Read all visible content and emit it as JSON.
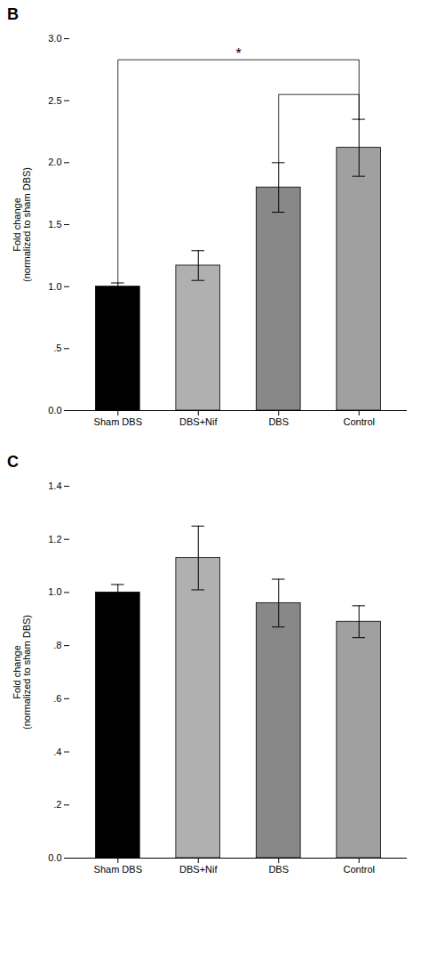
{
  "chart_data": [
    {
      "type": "bar",
      "title": "B",
      "categories": [
        "Sham DBS",
        "DBS+Nif",
        "DBS",
        "Control"
      ],
      "values": [
        1.0,
        1.17,
        1.8,
        2.12
      ],
      "errors": [
        0.03,
        0.12,
        0.2,
        0.23
      ],
      "colors": [
        "black",
        "#b0b0b0",
        "#888888",
        "#a0a0a0"
      ],
      "ylabel": "Fold change\n(normalized to sham DBS)",
      "ylim": [
        0.0,
        3.0
      ],
      "yticks": [
        {
          "value": 0.0,
          "label": "0.0"
        },
        {
          "value": 0.5,
          "label": ".5"
        },
        {
          "value": 1.0,
          "label": "1.0"
        },
        1.5,
        {
          "value": 2.0,
          "label": "2.0"
        },
        2.5,
        {
          "value": 3.0,
          "label": "3.0"
        }
      ],
      "brackets": [
        {
          "from": "Sham DBS",
          "to": "Control",
          "y": 2.83,
          "label": "*"
        },
        {
          "from": "DBS",
          "to": "Control",
          "y": 2.55
        }
      ]
    },
    {
      "type": "bar",
      "title": "C",
      "categories": [
        "Sham DBS",
        "DBS+Nif",
        "DBS",
        "Control"
      ],
      "values": [
        1.0,
        1.13,
        0.96,
        0.89
      ],
      "errors": [
        0.03,
        0.12,
        0.09,
        0.06
      ],
      "colors": [
        "black",
        "#b0b0b0",
        "#888888",
        "#a0a0a0"
      ],
      "ylabel": "Fold change\n(normalized to sham DBS)",
      "ylim": [
        0.0,
        1.4
      ],
      "yticks": [
        {
          "value": 0.0,
          "label": "0.0"
        },
        {
          "value": 0.2,
          "label": ".2"
        },
        {
          "value": 0.4,
          "label": ".4"
        },
        {
          "value": 0.6,
          "label": ".6"
        },
        {
          "value": 0.8,
          "label": ".8"
        },
        {
          "value": 1.0,
          "label": "1.0"
        },
        1.2,
        1.4
      ]
    }
  ]
}
